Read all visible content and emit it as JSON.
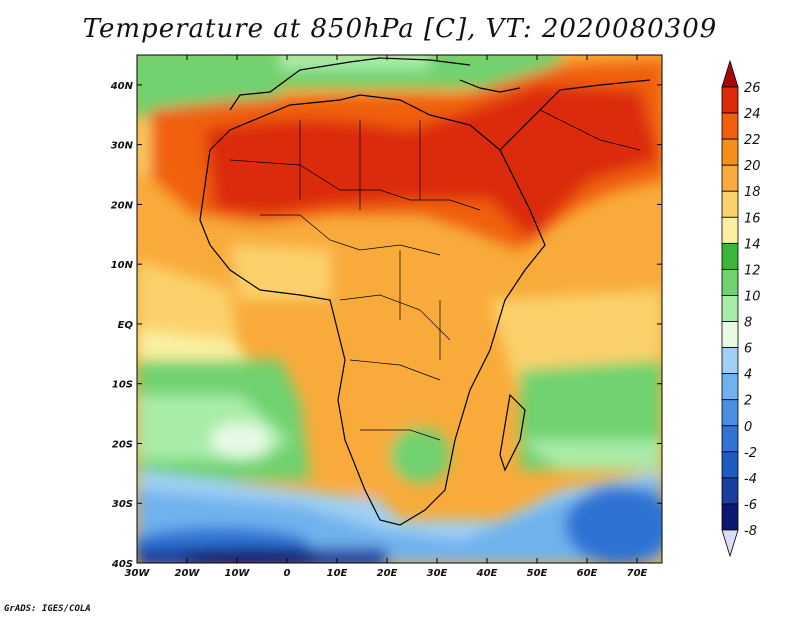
{
  "title": "Temperature at 850hPa [C], VT: 2020080309",
  "credit": "GrADS: IGES/COLA",
  "map": {
    "lon_range": [
      -30,
      75
    ],
    "lat_range": [
      -40,
      45
    ],
    "lat_ticks": [
      {
        "value": 40,
        "label": "40N"
      },
      {
        "value": 30,
        "label": "30N"
      },
      {
        "value": 20,
        "label": "20N"
      },
      {
        "value": 10,
        "label": "10N"
      },
      {
        "value": 0,
        "label": "EQ"
      },
      {
        "value": -10,
        "label": "10S"
      },
      {
        "value": -20,
        "label": "20S"
      },
      {
        "value": -30,
        "label": "30S"
      },
      {
        "value": -40,
        "label": "40S"
      }
    ],
    "lon_ticks": [
      {
        "value": -30,
        "label": "30W"
      },
      {
        "value": -20,
        "label": "20W"
      },
      {
        "value": -10,
        "label": "10W"
      },
      {
        "value": 0,
        "label": "0"
      },
      {
        "value": 10,
        "label": "10E"
      },
      {
        "value": 20,
        "label": "20E"
      },
      {
        "value": 30,
        "label": "30E"
      },
      {
        "value": 40,
        "label": "40E"
      },
      {
        "value": 50,
        "label": "50E"
      },
      {
        "value": 60,
        "label": "60E"
      },
      {
        "value": 70,
        "label": "70E"
      }
    ]
  },
  "colorbar": {
    "levels": [
      "26",
      "24",
      "22",
      "20",
      "18",
      "16",
      "14",
      "12",
      "10",
      "8",
      "6",
      "4",
      "2",
      "0",
      "-2",
      "-4",
      "-6",
      "-8"
    ],
    "colors": [
      "#a50a0a",
      "#dc2a0a",
      "#f0600c",
      "#f78e1a",
      "#f8ab3a",
      "#fbd16c",
      "#fbf0a0",
      "#3bb63b",
      "#6fd26f",
      "#a8eca8",
      "#e6fae6",
      "#9fd0f4",
      "#6fb2ee",
      "#4a8fe2",
      "#2f73d4",
      "#1f59c2",
      "#1a3fa0",
      "#0c1770"
    ],
    "top_arrow_color": "#a50a0a",
    "bottom_arrow_color": "#dcdcf8"
  }
}
